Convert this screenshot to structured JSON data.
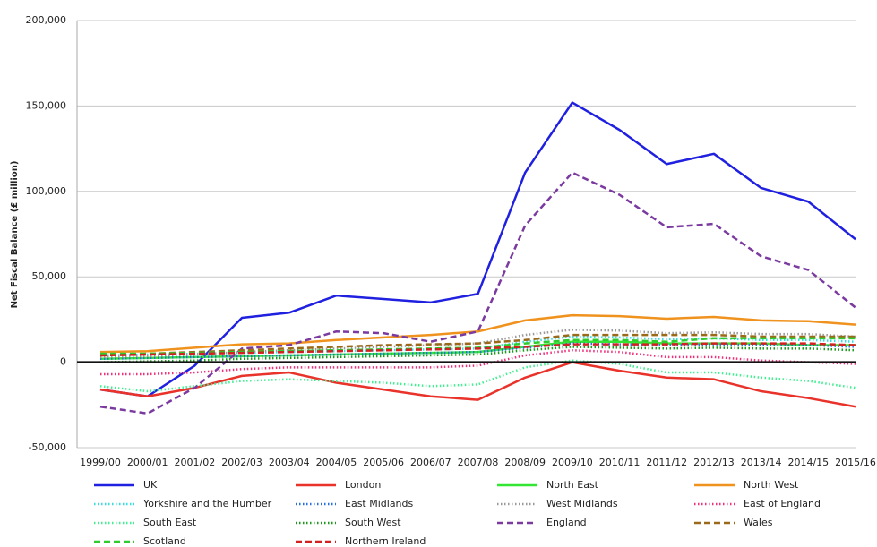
{
  "chart_data": {
    "type": "line",
    "y_label": "Net Fiscal Balance (£ million)",
    "categories": [
      "1999/00",
      "2000/01",
      "2001/02",
      "2002/03",
      "2003/04",
      "2004/05",
      "2005/06",
      "2006/07",
      "2007/08",
      "2008/09",
      "2009/10",
      "2010/11",
      "2011/12",
      "2012/13",
      "2013/14",
      "2014/15",
      "2015/16"
    ],
    "ylim": [
      -50000,
      200000
    ],
    "yticks": [
      {
        "value": -50000,
        "label": "-50,000"
      },
      0,
      {
        "value": 50000,
        "label": "50,000"
      },
      {
        "value": 100000,
        "label": "100,000"
      },
      {
        "value": 150000,
        "label": "150,000"
      },
      {
        "value": 200000,
        "label": "200,000"
      }
    ],
    "grid": true,
    "series": [
      {
        "name": "UK",
        "color": "#2020e0",
        "style": "solid",
        "values": [
          -16000,
          -20000,
          -2000,
          26000,
          29000,
          39000,
          37000,
          35000,
          40000,
          111000,
          152000,
          136000,
          116000,
          122000,
          102000,
          94000,
          72000
        ]
      },
      {
        "name": "London",
        "color": "#e8322a",
        "style": "solid",
        "values": [
          -16000,
          -20000,
          -15000,
          -8000,
          -6000,
          -12000,
          -16000,
          -20000,
          -22000,
          -9000,
          0,
          -5000,
          -9000,
          -10000,
          -17000,
          -21000,
          -26000
        ]
      },
      {
        "name": "North East",
        "color": "#33e633",
        "style": "solid",
        "values": [
          2000,
          2500,
          3000,
          3500,
          4000,
          4500,
          5000,
          5500,
          6000,
          9000,
          12000,
          12000,
          11000,
          11000,
          11000,
          10000,
          10000
        ]
      },
      {
        "name": "North West",
        "color": "#f0921e",
        "style": "solid",
        "values": [
          6000,
          6500,
          8500,
          10500,
          11000,
          13000,
          14500,
          16000,
          18000,
          24500,
          27500,
          27000,
          25500,
          26500,
          24500,
          24000,
          22000
        ]
      },
      {
        "name": "Yorkshire and the Humber",
        "color": "#33dde0",
        "style": "dotted",
        "values": [
          4000,
          4500,
          5000,
          5500,
          6000,
          6500,
          7000,
          7500,
          8000,
          12000,
          15000,
          14500,
          13500,
          14000,
          13000,
          13000,
          12000
        ]
      },
      {
        "name": "East Midlands",
        "color": "#2a6fe0",
        "style": "dotted",
        "values": [
          2000,
          2500,
          3000,
          3500,
          4000,
          4500,
          5000,
          5500,
          6000,
          8500,
          11000,
          10500,
          10000,
          10500,
          10000,
          10000,
          9000
        ]
      },
      {
        "name": "West Midlands",
        "color": "#999999",
        "style": "dotted",
        "values": [
          3000,
          3500,
          4500,
          6000,
          7000,
          8000,
          9000,
          10000,
          11000,
          16000,
          19000,
          18500,
          17000,
          17500,
          16500,
          16500,
          15000
        ]
      },
      {
        "name": "East of England",
        "color": "#f0307a",
        "style": "dotted",
        "values": [
          -7000,
          -7000,
          -6000,
          -4000,
          -3000,
          -3000,
          -3000,
          -3000,
          -2000,
          4000,
          7000,
          6000,
          3000,
          3000,
          1000,
          0,
          -1000
        ]
      },
      {
        "name": "South East",
        "color": "#40f090",
        "style": "dotted",
        "values": [
          -14000,
          -17000,
          -14000,
          -11000,
          -10000,
          -11000,
          -12000,
          -14000,
          -13000,
          -3000,
          1000,
          -1000,
          -6000,
          -6000,
          -9000,
          -11000,
          -15000
        ]
      },
      {
        "name": "South West",
        "color": "#1a9a1a",
        "style": "dotted",
        "values": [
          0,
          500,
          1000,
          2000,
          2500,
          3000,
          3500,
          4000,
          4500,
          7000,
          9000,
          8500,
          8000,
          8500,
          8000,
          8000,
          7000
        ]
      },
      {
        "name": "England",
        "color": "#7a3aa0",
        "style": "dashed",
        "values": [
          -26000,
          -30000,
          -15000,
          8000,
          10000,
          18000,
          17000,
          12000,
          18000,
          80000,
          111000,
          98000,
          79000,
          81000,
          62000,
          54000,
          32000
        ]
      },
      {
        "name": "Wales",
        "color": "#9a6a1a",
        "style": "dashed",
        "values": [
          4000,
          5000,
          6000,
          7000,
          8000,
          9000,
          10000,
          10500,
          11000,
          13000,
          16000,
          16000,
          16000,
          16000,
          15000,
          15000,
          15000
        ]
      },
      {
        "name": "Scotland",
        "color": "#2ecc2e",
        "style": "dashed",
        "values": [
          5000,
          5000,
          5500,
          6000,
          6500,
          7000,
          7500,
          8000,
          8500,
          11000,
          13000,
          13000,
          12000,
          14000,
          14000,
          14000,
          14000
        ]
      },
      {
        "name": "Northern Ireland",
        "color": "#d42020",
        "style": "dashed",
        "values": [
          4000,
          4500,
          5000,
          5500,
          6000,
          6500,
          7000,
          7500,
          8000,
          9000,
          10500,
          10500,
          10500,
          11000,
          11000,
          11000,
          10000
        ]
      }
    ]
  }
}
